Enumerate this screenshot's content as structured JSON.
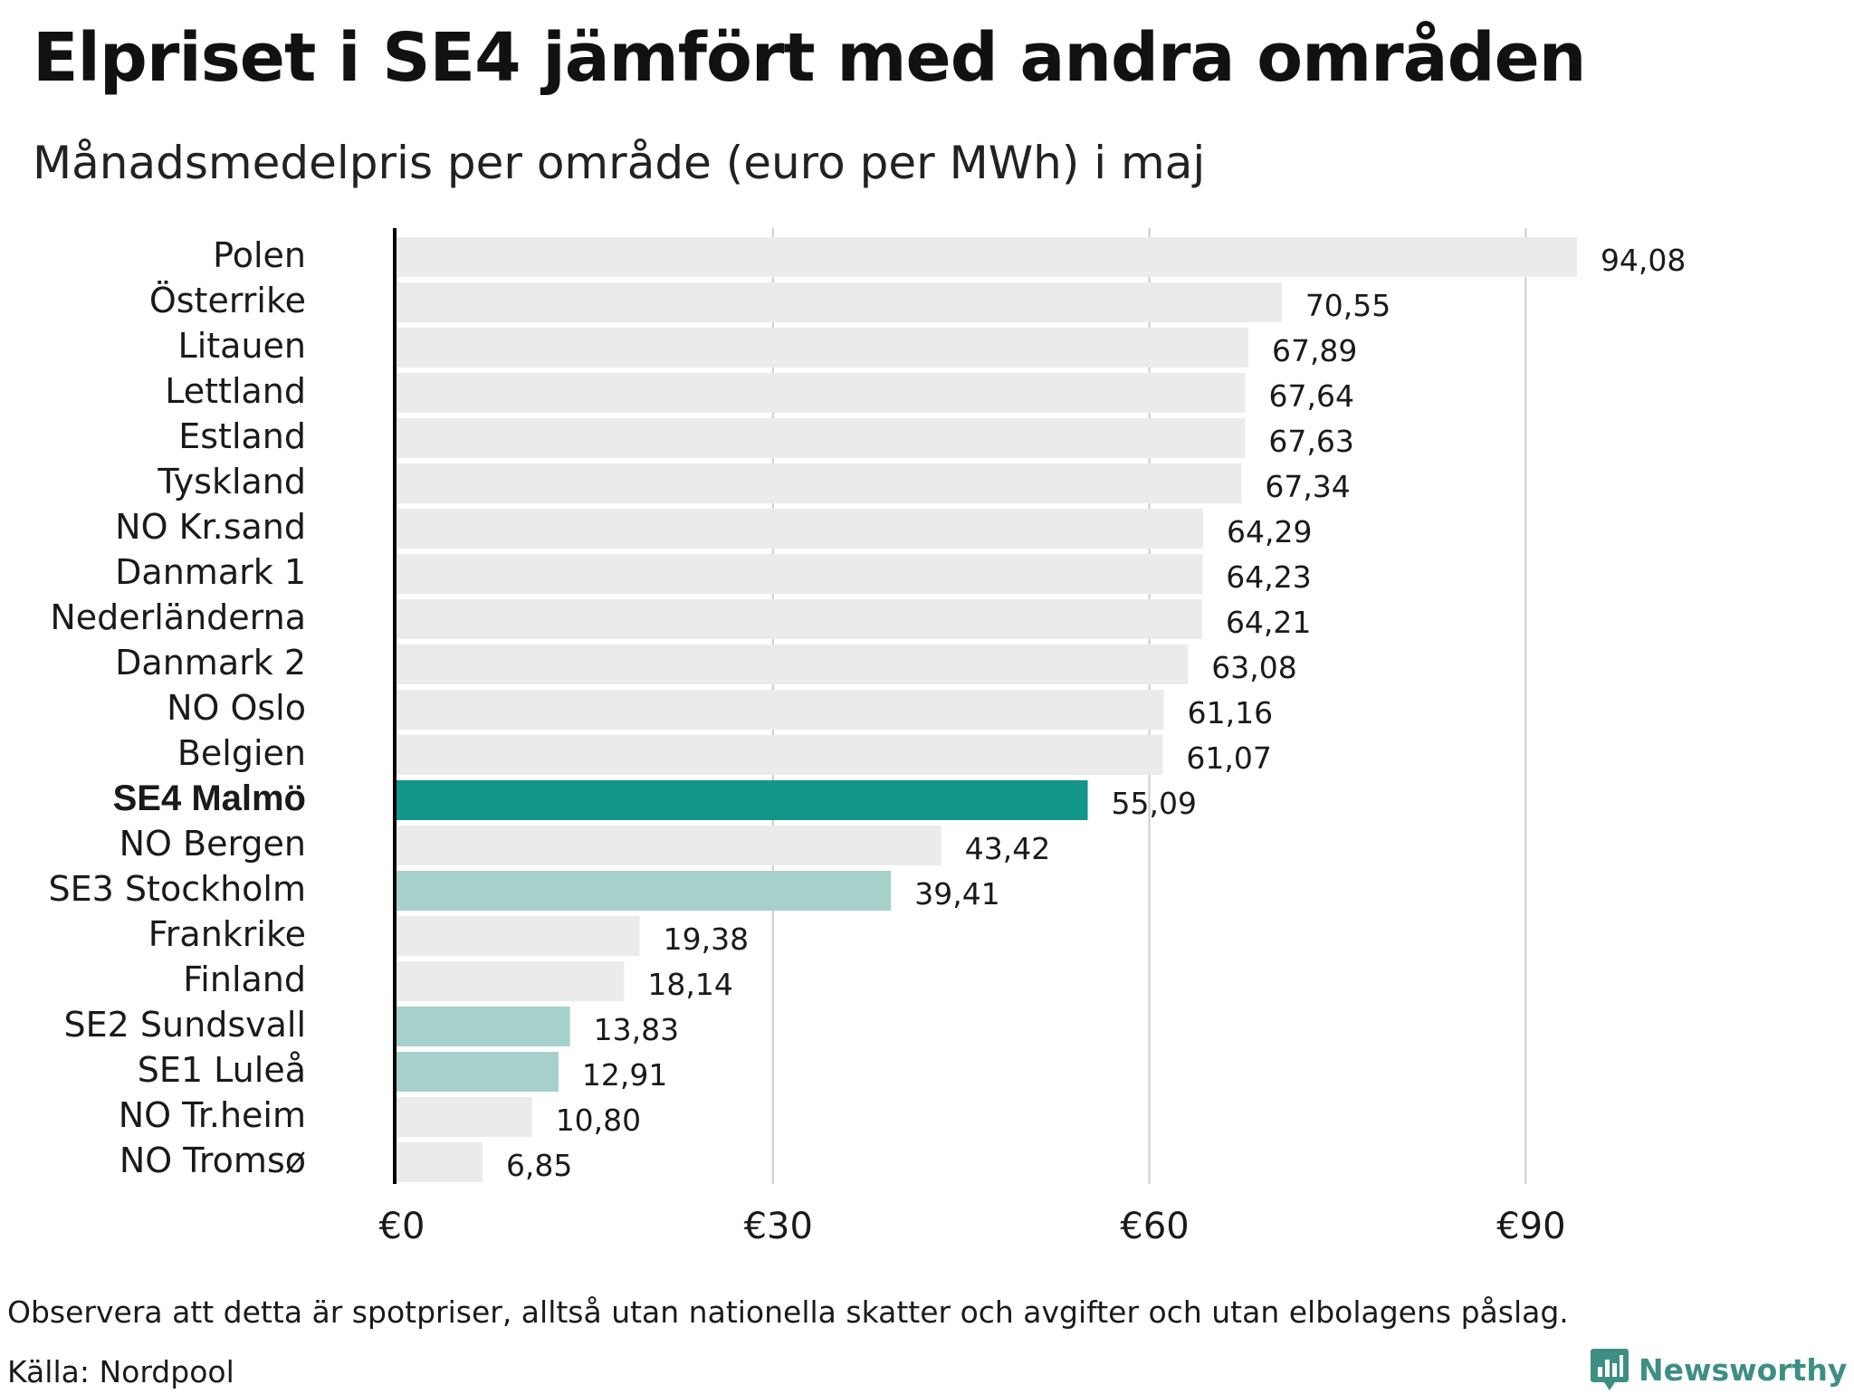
{
  "title": "Elpriset i SE4 jämfört med andra områden",
  "subtitle": "Månadsmedelpris per område (euro per MWh) i maj",
  "note": "Observera att detta är spotpriser, alltså utan nationella skatter och avgifter och utan elbolagens påslag.",
  "source": "Källa: Nordpool",
  "brand": {
    "name": "Newsworthy",
    "icon": "newsworthy-logo-icon",
    "color": "#3d8f84"
  },
  "colors": {
    "default_bar": "#ebebeb",
    "highlight_bar": "#13968a",
    "swedish_bar": "#a6d1cb",
    "gridline": "#cccccc",
    "axis": "#000000"
  },
  "chart_data": {
    "type": "bar",
    "orientation": "horizontal",
    "categories": [
      "Polen",
      "Österrike",
      "Litauen",
      "Lettland",
      "Estland",
      "Tyskland",
      "NO Kr.sand",
      "Danmark 1",
      "Nederländerna",
      "Danmark 2",
      "NO Oslo",
      "Belgien",
      "SE4 Malmö",
      "NO Bergen",
      "SE3 Stockholm",
      "Frankrike",
      "Finland",
      "SE2 Sundsvall",
      "SE1 Luleå",
      "NO Tr.heim",
      "NO Tromsø"
    ],
    "values": [
      94.08,
      70.55,
      67.89,
      67.64,
      67.63,
      67.34,
      64.29,
      64.23,
      64.21,
      63.08,
      61.16,
      61.07,
      55.09,
      43.42,
      39.41,
      19.38,
      18.14,
      13.83,
      12.91,
      10.8,
      6.85
    ],
    "value_labels": [
      "94,08",
      "70,55",
      "67,89",
      "67,64",
      "67,63",
      "67,34",
      "64,29",
      "64,23",
      "64,21",
      "63,08",
      "61,16",
      "61,07",
      "55,09",
      "43,42",
      "39,41",
      "19,38",
      "18,14",
      "13,83",
      "12,91",
      "10,80",
      "6,85"
    ],
    "bar_style": [
      "default",
      "default",
      "default",
      "default",
      "default",
      "default",
      "default",
      "default",
      "default",
      "default",
      "default",
      "default",
      "highlight",
      "default",
      "swedish",
      "default",
      "default",
      "swedish",
      "swedish",
      "default",
      "default"
    ],
    "bold_label": "SE4 Malmö",
    "xaxis": {
      "ticks": [
        0,
        30,
        60,
        90
      ],
      "tick_labels": [
        "€0",
        "€30",
        "€60",
        "€90"
      ],
      "xlim": [
        0,
        100
      ],
      "grid": true
    },
    "title": "Elpriset i SE4 jämfört med andra områden",
    "subtitle": "Månadsmedelpris per område (euro per MWh) i maj",
    "legend": "none"
  }
}
